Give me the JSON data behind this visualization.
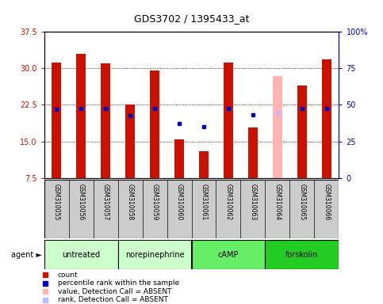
{
  "title": "GDS3702 / 1395433_at",
  "samples": [
    "GSM310055",
    "GSM310056",
    "GSM310057",
    "GSM310058",
    "GSM310059",
    "GSM310060",
    "GSM310061",
    "GSM310062",
    "GSM310063",
    "GSM310064",
    "GSM310065",
    "GSM310066"
  ],
  "groups": [
    {
      "name": "untreated",
      "color": "#ccffcc",
      "indices": [
        0,
        1,
        2
      ]
    },
    {
      "name": "norepinephrine",
      "color": "#ccffcc",
      "indices": [
        3,
        4,
        5
      ]
    },
    {
      "name": "cAMP",
      "color": "#55dd55",
      "indices": [
        6,
        7,
        8
      ]
    },
    {
      "name": "forskolin",
      "color": "#22cc22",
      "indices": [
        9,
        10,
        11
      ]
    }
  ],
  "bar_values": [
    31.2,
    33.0,
    31.0,
    22.5,
    29.5,
    15.4,
    13.0,
    31.2,
    17.8,
    28.5,
    26.5,
    31.8
  ],
  "bar_absent": [
    false,
    false,
    false,
    false,
    false,
    false,
    false,
    false,
    false,
    true,
    false,
    false
  ],
  "percentile_ranks": [
    47.0,
    47.5,
    47.5,
    42.5,
    47.5,
    37.5,
    35.0,
    47.5,
    43.0,
    45.0,
    47.5,
    47.5
  ],
  "percentile_absent": [
    false,
    false,
    false,
    false,
    false,
    false,
    false,
    false,
    false,
    true,
    false,
    false
  ],
  "ylim_left": [
    7.5,
    37.5
  ],
  "ylim_right": [
    0,
    100
  ],
  "yticks_left": [
    7.5,
    15.0,
    22.5,
    30.0,
    37.5
  ],
  "yticks_right": [
    0,
    25,
    50,
    75,
    100
  ],
  "bar_color": "#cc1100",
  "bar_absent_color": "#ffb3b3",
  "dot_color": "#0000cc",
  "dot_absent_color": "#bbbbff",
  "bg_color": "#ffffff",
  "plot_bg": "#ffffff",
  "grid_color": "#000000",
  "sample_bg": "#cccccc",
  "left_axis_color": "#cc1100",
  "right_axis_color": "#0000cc"
}
